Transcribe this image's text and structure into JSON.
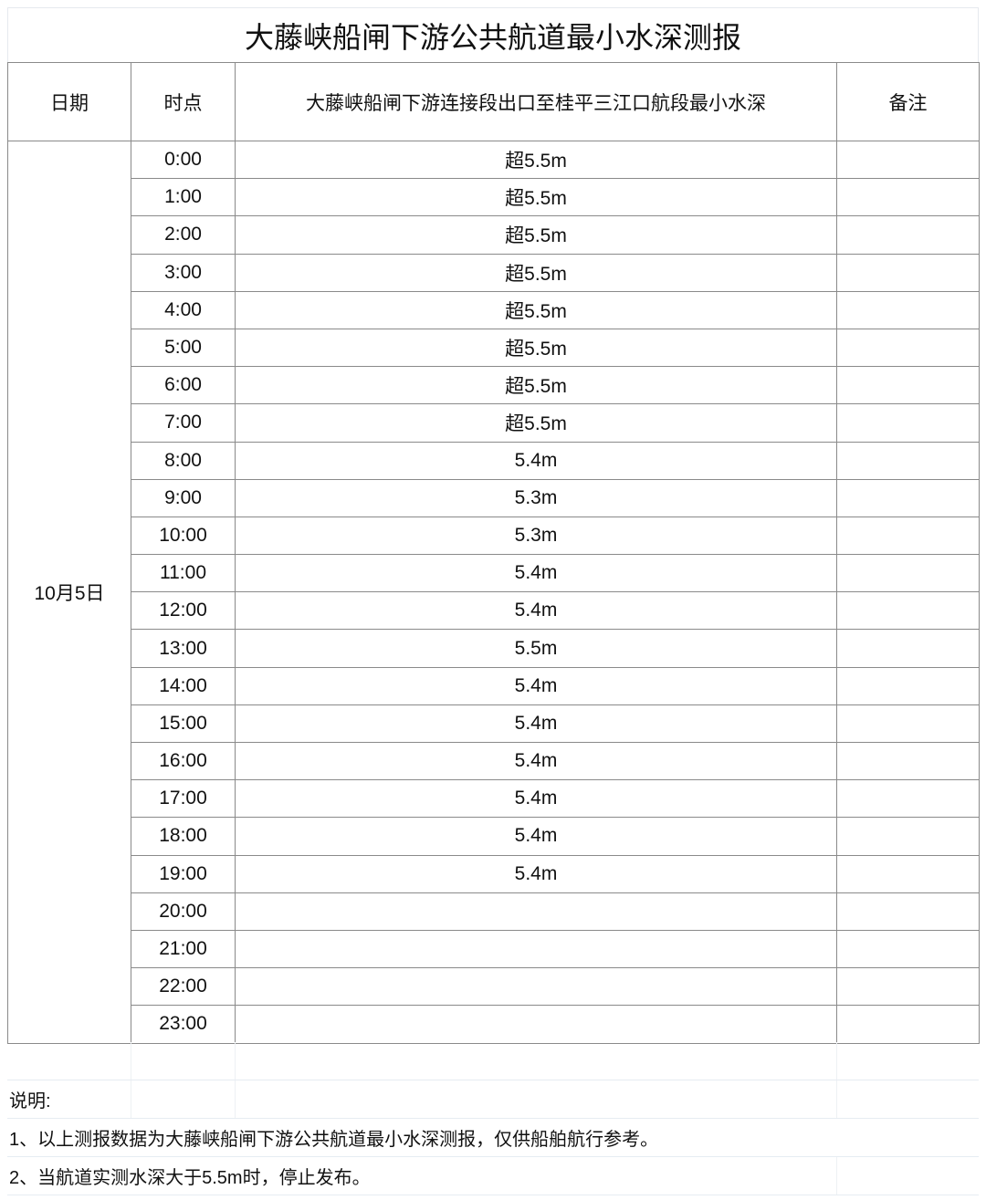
{
  "title": "大藤峡船闸下游公共航道最小水深测报",
  "headers": {
    "date": "日期",
    "time": "时点",
    "depth": "大藤峡船闸下游连接段出口至桂平三江口航段最小水深",
    "remark": "备注"
  },
  "date": "10月5日",
  "rows": [
    {
      "time": "0:00",
      "depth": "超5.5m"
    },
    {
      "time": "1:00",
      "depth": "超5.5m"
    },
    {
      "time": "2:00",
      "depth": "超5.5m"
    },
    {
      "time": "3:00",
      "depth": "超5.5m"
    },
    {
      "time": "4:00",
      "depth": "超5.5m"
    },
    {
      "time": "5:00",
      "depth": "超5.5m"
    },
    {
      "time": "6:00",
      "depth": "超5.5m"
    },
    {
      "time": "7:00",
      "depth": "超5.5m"
    },
    {
      "time": "8:00",
      "depth": "5.4m"
    },
    {
      "time": "9:00",
      "depth": "5.3m"
    },
    {
      "time": "10:00",
      "depth": "5.3m"
    },
    {
      "time": "11:00",
      "depth": "5.4m"
    },
    {
      "time": "12:00",
      "depth": "5.4m"
    },
    {
      "time": "13:00",
      "depth": "5.5m"
    },
    {
      "time": "14:00",
      "depth": "5.4m"
    },
    {
      "time": "15:00",
      "depth": "5.4m"
    },
    {
      "time": "16:00",
      "depth": "5.4m"
    },
    {
      "time": "17:00",
      "depth": "5.4m"
    },
    {
      "time": "18:00",
      "depth": "5.4m"
    },
    {
      "time": "19:00",
      "depth": "5.4m"
    },
    {
      "time": "20:00",
      "depth": ""
    },
    {
      "time": "21:00",
      "depth": ""
    },
    {
      "time": "22:00",
      "depth": ""
    },
    {
      "time": "23:00",
      "depth": ""
    }
  ],
  "notes": {
    "heading": "说明:",
    "items": [
      "1、以上测报数据为大藤峡船闸下游公共航道最小水深测报，仅供船舶航行参考。",
      "2、当航道实测水深大于5.5m时，停止发布。"
    ]
  }
}
